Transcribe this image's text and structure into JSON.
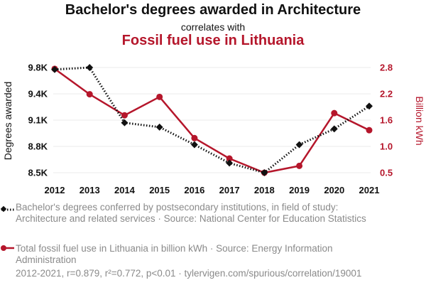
{
  "header": {
    "title": "Bachelor's degrees awarded in Architecture",
    "subtitle": "correlates with",
    "title2": "Fossil fuel use in Lithuania"
  },
  "colors": {
    "series1": "#111111",
    "series2": "#b5162b",
    "muted": "#8a8a8a"
  },
  "chart_data": {
    "type": "line",
    "x": [
      2012,
      2013,
      2014,
      2015,
      2016,
      2017,
      2018,
      2019,
      2020,
      2021
    ],
    "grid": true,
    "left_axis": {
      "label": "Degrees awarded",
      "ticks": [
        8500,
        8800,
        9100,
        9400,
        9800
      ],
      "tick_labels": [
        "8.5K",
        "8.8K",
        "9.1K",
        "9.4K",
        "9.8K"
      ],
      "range": [
        8500,
        9800
      ]
    },
    "right_axis": {
      "label": "Billion kWh",
      "ticks": [
        0.5,
        1.0,
        1.6,
        2.2,
        2.8
      ],
      "tick_labels": [
        "0.5",
        "1.0",
        "1.6",
        "2.2",
        "2.8"
      ],
      "range": [
        0.5,
        2.8
      ]
    },
    "series": [
      {
        "axis": "left",
        "style": "dotted",
        "marker": "diamond",
        "values": [
          9770,
          9800,
          9070,
          9020,
          8820,
          8610,
          8500,
          8820,
          9000,
          9260
        ]
      },
      {
        "axis": "right",
        "style": "solid",
        "marker": "circle",
        "values": [
          2.77,
          2.19,
          1.71,
          2.13,
          1.19,
          0.77,
          0.5,
          0.63,
          1.76,
          1.37
        ]
      }
    ]
  },
  "legend": {
    "item1": "Bachelor's degrees conferred by postsecondary institutions, in field of study: Architecture and related services · Source: National Center for Education Statistics",
    "item2": "Total fossil fuel use in Lithuania in billion kWh · Source: Energy Information Administration"
  },
  "footer": "2012-2021, r=0.879, r²=0.772, p<0.01 · tylervigen.com/spurious/correlation/19001"
}
